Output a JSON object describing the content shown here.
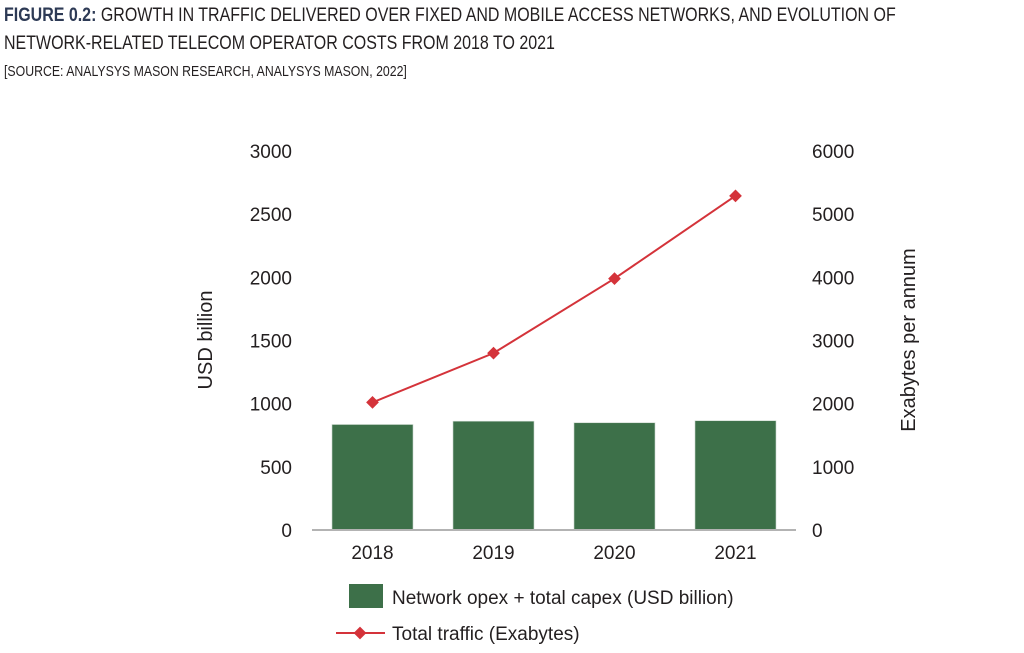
{
  "header": {
    "figure_label": "FIGURE 0.2:",
    "title_line1": "GROWTH IN TRAFFIC DELIVERED OVER FIXED AND MOBILE ACCESS NETWORKS, AND EVOLUTION OF",
    "title_line2": "NETWORK-RELATED TELECOM OPERATOR COSTS FROM 2018 TO 2021",
    "source": "[SOURCE: ANALYSYS MASON RESEARCH, ANALYSYS MASON, 2022]"
  },
  "chart_data": {
    "type": "bar+line",
    "categories": [
      "2018",
      "2019",
      "2020",
      "2021"
    ],
    "series": [
      {
        "name": "Network opex + total capex (USD billion)",
        "type": "bar",
        "axis": "left",
        "color": "#3d7049",
        "values": [
          835,
          861,
          849,
          865
        ]
      },
      {
        "name": "Total traffic (Exabytes)",
        "type": "line",
        "axis": "right",
        "color": "#d4333a",
        "marker": "diamond",
        "values": [
          2020,
          2800,
          3980,
          5290
        ]
      }
    ],
    "ylabel": "USD billion",
    "ylabel_right": "Exabytes per annum",
    "ylim": [
      0,
      3000
    ],
    "ylim_right": [
      0,
      6000
    ],
    "yticks": [
      "0",
      "500",
      "1000",
      "1500",
      "2000",
      "2500",
      "3000"
    ],
    "yticks_right": [
      "0",
      "1000",
      "2000",
      "3000",
      "4000",
      "5000",
      "6000"
    ],
    "grid": false,
    "legend_position": "bottom"
  }
}
